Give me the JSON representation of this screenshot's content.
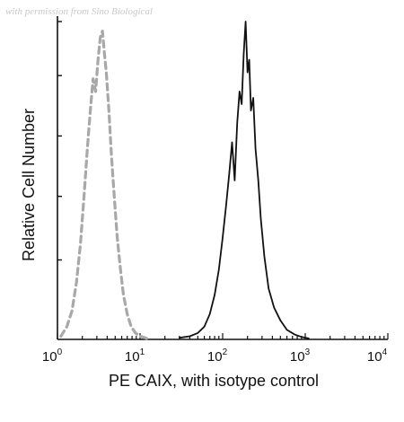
{
  "watermark": "with permission from Sino Biological",
  "chart_data": {
    "type": "line",
    "title": "",
    "xlabel": "PE CAIX, with isotype control",
    "ylabel": "Relative Cell Number",
    "x_scale": "log",
    "xlim": [
      1,
      10000
    ],
    "ylim": [
      0,
      100
    ],
    "x_ticks": [
      {
        "value": 1,
        "base": "10",
        "exp": "0"
      },
      {
        "value": 10,
        "base": "10",
        "exp": "1"
      },
      {
        "value": 100,
        "base": "10",
        "exp": "2"
      },
      {
        "value": 1000,
        "base": "10",
        "exp": "3"
      },
      {
        "value": 10000,
        "base": "10",
        "exp": "4"
      }
    ],
    "grid": false,
    "legend": "none",
    "series": [
      {
        "style": "dashed",
        "color": "#a8a8a8",
        "x": [
          1.1,
          1.3,
          1.5,
          1.7,
          1.9,
          2.1,
          2.3,
          2.5,
          2.7,
          2.9,
          3.1,
          3.3,
          3.5,
          3.7,
          3.9,
          4.2,
          4.5,
          4.9,
          5.3,
          5.8,
          6.3,
          7.0,
          7.8,
          8.8,
          10,
          11.5,
          13
        ],
        "y": [
          1,
          4,
          9,
          18,
          30,
          45,
          60,
          72,
          82,
          78,
          88,
          95,
          97,
          90,
          84,
          72,
          58,
          44,
          32,
          22,
          14,
          8,
          4,
          2,
          1,
          0.5,
          0
        ]
      },
      {
        "style": "solid",
        "color": "#111111",
        "x": [
          30,
          40,
          50,
          60,
          70,
          80,
          90,
          100,
          110,
          120,
          130,
          140,
          150,
          160,
          170,
          180,
          190,
          200,
          210,
          220,
          235,
          250,
          270,
          290,
          320,
          360,
          420,
          500,
          600,
          750,
          900,
          1100
        ],
        "y": [
          0.5,
          1,
          2,
          4,
          8,
          14,
          22,
          32,
          42,
          52,
          62,
          50,
          68,
          78,
          74,
          90,
          100,
          84,
          88,
          72,
          76,
          60,
          50,
          38,
          26,
          16,
          10,
          6,
          3,
          1.5,
          0.8,
          0.3
        ]
      }
    ]
  }
}
